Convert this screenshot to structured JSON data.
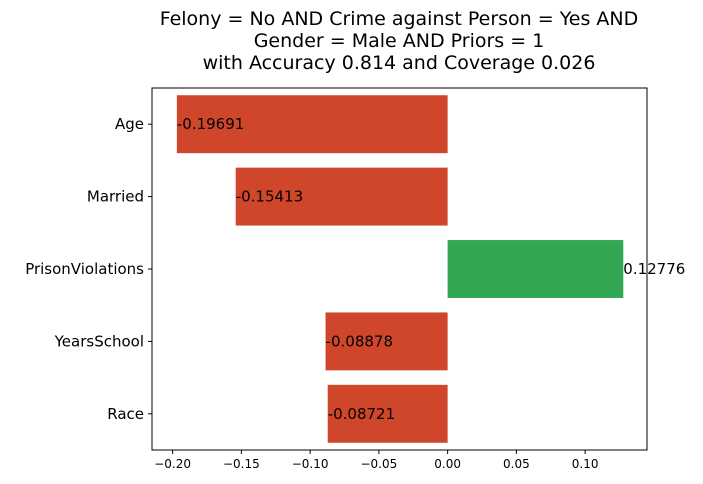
{
  "chart_data": {
    "type": "bar",
    "orientation": "horizontal",
    "title": [
      "Felony = No AND Crime against Person = Yes AND",
      "Gender = Male AND Priors = 1",
      "with Accuracy 0.814 and Coverage 0.026"
    ],
    "categories": [
      "Age",
      "Married",
      "PrisonViolations",
      "YearsSchool",
      "Race"
    ],
    "values": [
      -0.19691,
      -0.15413,
      0.12776,
      -0.08878,
      -0.08721
    ],
    "value_labels": [
      "-0.19691",
      "-0.15413",
      "0.12776",
      "-0.08878",
      "-0.08721"
    ],
    "xlim": [
      -0.215,
      0.145
    ],
    "xticks": [
      -0.2,
      -0.15,
      -0.1,
      -0.05,
      0.0,
      0.05,
      0.1
    ],
    "xtick_labels": [
      "−0.20",
      "−0.15",
      "−0.10",
      "−0.05",
      "0.00",
      "0.05",
      "0.10"
    ],
    "xlabel": "",
    "ylabel": "",
    "grid": false,
    "colors": {
      "negative": "#d0462b",
      "positive": "#33a853"
    }
  }
}
